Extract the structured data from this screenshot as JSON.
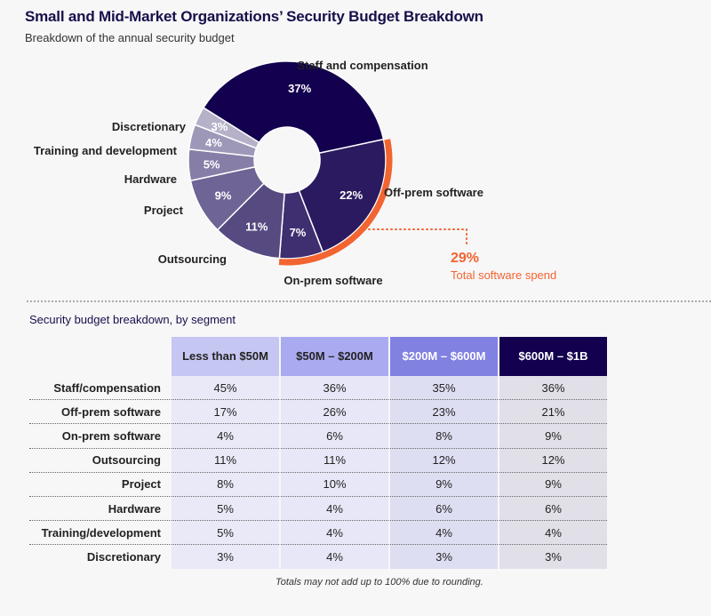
{
  "title": "Small and Mid-Market Organizations’ Security Budget Breakdown",
  "subtitle": "Breakdown of the annual security budget",
  "chart_data": [
    {
      "type": "pie",
      "variant": "donut",
      "categories": [
        "Staff and compensation",
        "Off-prem software",
        "On-prem software",
        "Outsourcing",
        "Project",
        "Hardware",
        "Training and development",
        "Discretionary"
      ],
      "values": [
        37,
        22,
        7,
        11,
        9,
        5,
        4,
        3
      ],
      "labels": [
        "37%",
        "22%",
        "7%",
        "11%",
        "9%",
        "5%",
        "4%",
        "3%"
      ],
      "colors": [
        "#13004f",
        "#2b1a5f",
        "#3f2e70",
        "#564a81",
        "#6e6495",
        "#877ea7",
        "#9e98b8",
        "#b6b1c9"
      ],
      "annotation": {
        "value": "29%",
        "label": "Total software spend",
        "color": "#f26430",
        "covers": [
          "Off-prem software",
          "On-prem software"
        ]
      }
    },
    {
      "type": "table",
      "title": "Security budget breakdown, by segment",
      "columns": [
        "Less than $50M",
        "$50M – $200M",
        "$200M – $600M",
        "$600M – $1B"
      ],
      "header_colors": [
        "#c6c6f3",
        "#aaaaf1",
        "#8181e2",
        "#13004f"
      ],
      "rows": [
        {
          "label": "Staff/compensation",
          "values": [
            "45%",
            "36%",
            "35%",
            "36%"
          ]
        },
        {
          "label": "Off-prem software",
          "values": [
            "17%",
            "26%",
            "23%",
            "21%"
          ]
        },
        {
          "label": "On-prem software",
          "values": [
            "4%",
            "6%",
            "8%",
            "9%"
          ]
        },
        {
          "label": "Outsourcing",
          "values": [
            "11%",
            "11%",
            "12%",
            "12%"
          ]
        },
        {
          "label": "Project",
          "values": [
            "8%",
            "10%",
            "9%",
            "9%"
          ]
        },
        {
          "label": "Hardware",
          "values": [
            "5%",
            "4%",
            "6%",
            "6%"
          ]
        },
        {
          "label": "Training/development",
          "values": [
            "5%",
            "4%",
            "4%",
            "4%"
          ]
        },
        {
          "label": "Discretionary",
          "values": [
            "3%",
            "4%",
            "3%",
            "3%"
          ]
        }
      ],
      "footnote": "Totals may not add up to 100% due to rounding."
    }
  ]
}
